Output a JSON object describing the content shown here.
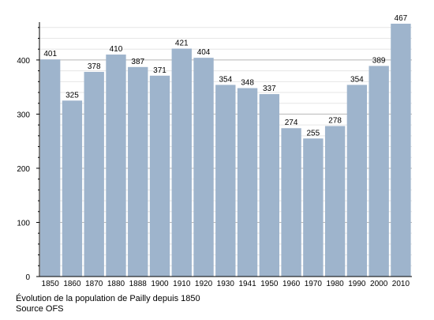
{
  "chart_data": {
    "type": "bar",
    "categories": [
      "1850",
      "1860",
      "1870",
      "1880",
      "1888",
      "1900",
      "1910",
      "1920",
      "1930",
      "1941",
      "1950",
      "1960",
      "1970",
      "1980",
      "1990",
      "2000",
      "2010"
    ],
    "values": [
      401,
      325,
      378,
      410,
      387,
      371,
      421,
      404,
      354,
      348,
      337,
      274,
      255,
      278,
      354,
      389,
      467
    ],
    "ylim": [
      0,
      467
    ],
    "yticks": [
      0,
      100,
      200,
      300,
      400
    ],
    "grid": true,
    "bar_color": "#9eb4cc",
    "title": "",
    "xlabel": "",
    "ylabel": ""
  },
  "caption": {
    "line1": "Évolution de la population de Pailly depuis 1850",
    "line2": "Source OFS"
  }
}
